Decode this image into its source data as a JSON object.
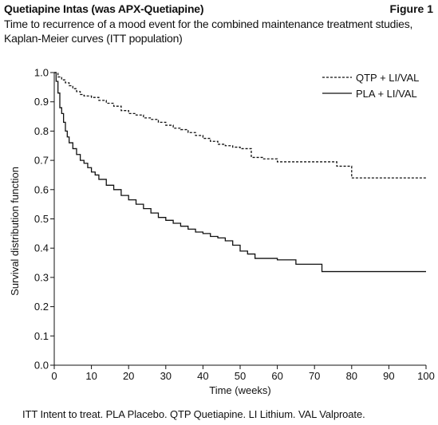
{
  "header": {
    "title": "Quetiapine Intas (was APX-Quetiapine)",
    "figure_label": "Figure 1",
    "subtitle_line1": "Time to recurrence of a mood event for the combined maintenance treatment studies,",
    "subtitle_line2": "Kaplan-Meier curves (ITT population)"
  },
  "footnote": "ITT Intent to treat. PLA Placebo. QTP Quetiapine. LI Lithium. VAL Valproate.",
  "chart_data": {
    "type": "line",
    "title": "",
    "xlabel": "Time (weeks)",
    "ylabel": "Survival distribution function",
    "xlim": [
      0,
      100
    ],
    "ylim": [
      0.0,
      1.0
    ],
    "xticks": [
      0,
      10,
      20,
      30,
      40,
      50,
      60,
      70,
      80,
      90,
      100
    ],
    "xtick_labels": [
      "0",
      "10",
      "20",
      "30",
      "40",
      "50",
      "60",
      "70",
      "80",
      "90",
      "100"
    ],
    "yticks": [
      0.0,
      0.1,
      0.2,
      0.3,
      0.4,
      0.5,
      0.6,
      0.7,
      0.8,
      0.9,
      1.0
    ],
    "ytick_labels": [
      "0.0",
      "0.1",
      "0.2",
      "0.3",
      "0.4",
      "0.5",
      "0.6",
      "0.7",
      "0.8",
      "0.9",
      "1.0"
    ],
    "grid": false,
    "legend_position": "top-right",
    "step": true,
    "series": [
      {
        "name": "QTP + LI/VAL",
        "style": "dashed",
        "color": "#111111",
        "x": [
          0,
          1,
          2,
          3,
          4,
          5,
          6,
          7,
          8,
          10,
          12,
          14,
          16,
          18,
          20,
          22,
          24,
          26,
          28,
          30,
          32,
          34,
          36,
          38,
          40,
          42,
          44,
          46,
          48,
          50,
          52,
          53,
          56,
          60,
          66,
          72,
          76,
          80,
          100
        ],
        "y": [
          1.0,
          0.985,
          0.975,
          0.965,
          0.955,
          0.945,
          0.935,
          0.925,
          0.92,
          0.915,
          0.905,
          0.895,
          0.885,
          0.87,
          0.86,
          0.855,
          0.845,
          0.84,
          0.83,
          0.82,
          0.81,
          0.805,
          0.795,
          0.785,
          0.775,
          0.765,
          0.755,
          0.75,
          0.745,
          0.74,
          0.74,
          0.71,
          0.705,
          0.695,
          0.695,
          0.695,
          0.68,
          0.64,
          0.64
        ]
      },
      {
        "name": "PLA + LI/VAL",
        "style": "solid",
        "color": "#111111",
        "x": [
          0,
          0.5,
          1,
          1.5,
          2,
          2.5,
          3,
          3.5,
          4,
          5,
          6,
          7,
          8,
          9,
          10,
          11,
          12,
          14,
          16,
          18,
          20,
          22,
          24,
          26,
          28,
          30,
          32,
          34,
          36,
          38,
          40,
          42,
          44,
          46,
          48,
          50,
          52,
          54,
          60,
          65,
          72,
          100
        ],
        "y": [
          1.0,
          0.97,
          0.93,
          0.88,
          0.86,
          0.83,
          0.8,
          0.78,
          0.76,
          0.74,
          0.72,
          0.7,
          0.69,
          0.675,
          0.66,
          0.65,
          0.635,
          0.615,
          0.6,
          0.58,
          0.565,
          0.55,
          0.535,
          0.52,
          0.505,
          0.495,
          0.485,
          0.475,
          0.465,
          0.455,
          0.45,
          0.44,
          0.435,
          0.425,
          0.41,
          0.39,
          0.38,
          0.365,
          0.36,
          0.345,
          0.32,
          0.32
        ]
      }
    ]
  }
}
